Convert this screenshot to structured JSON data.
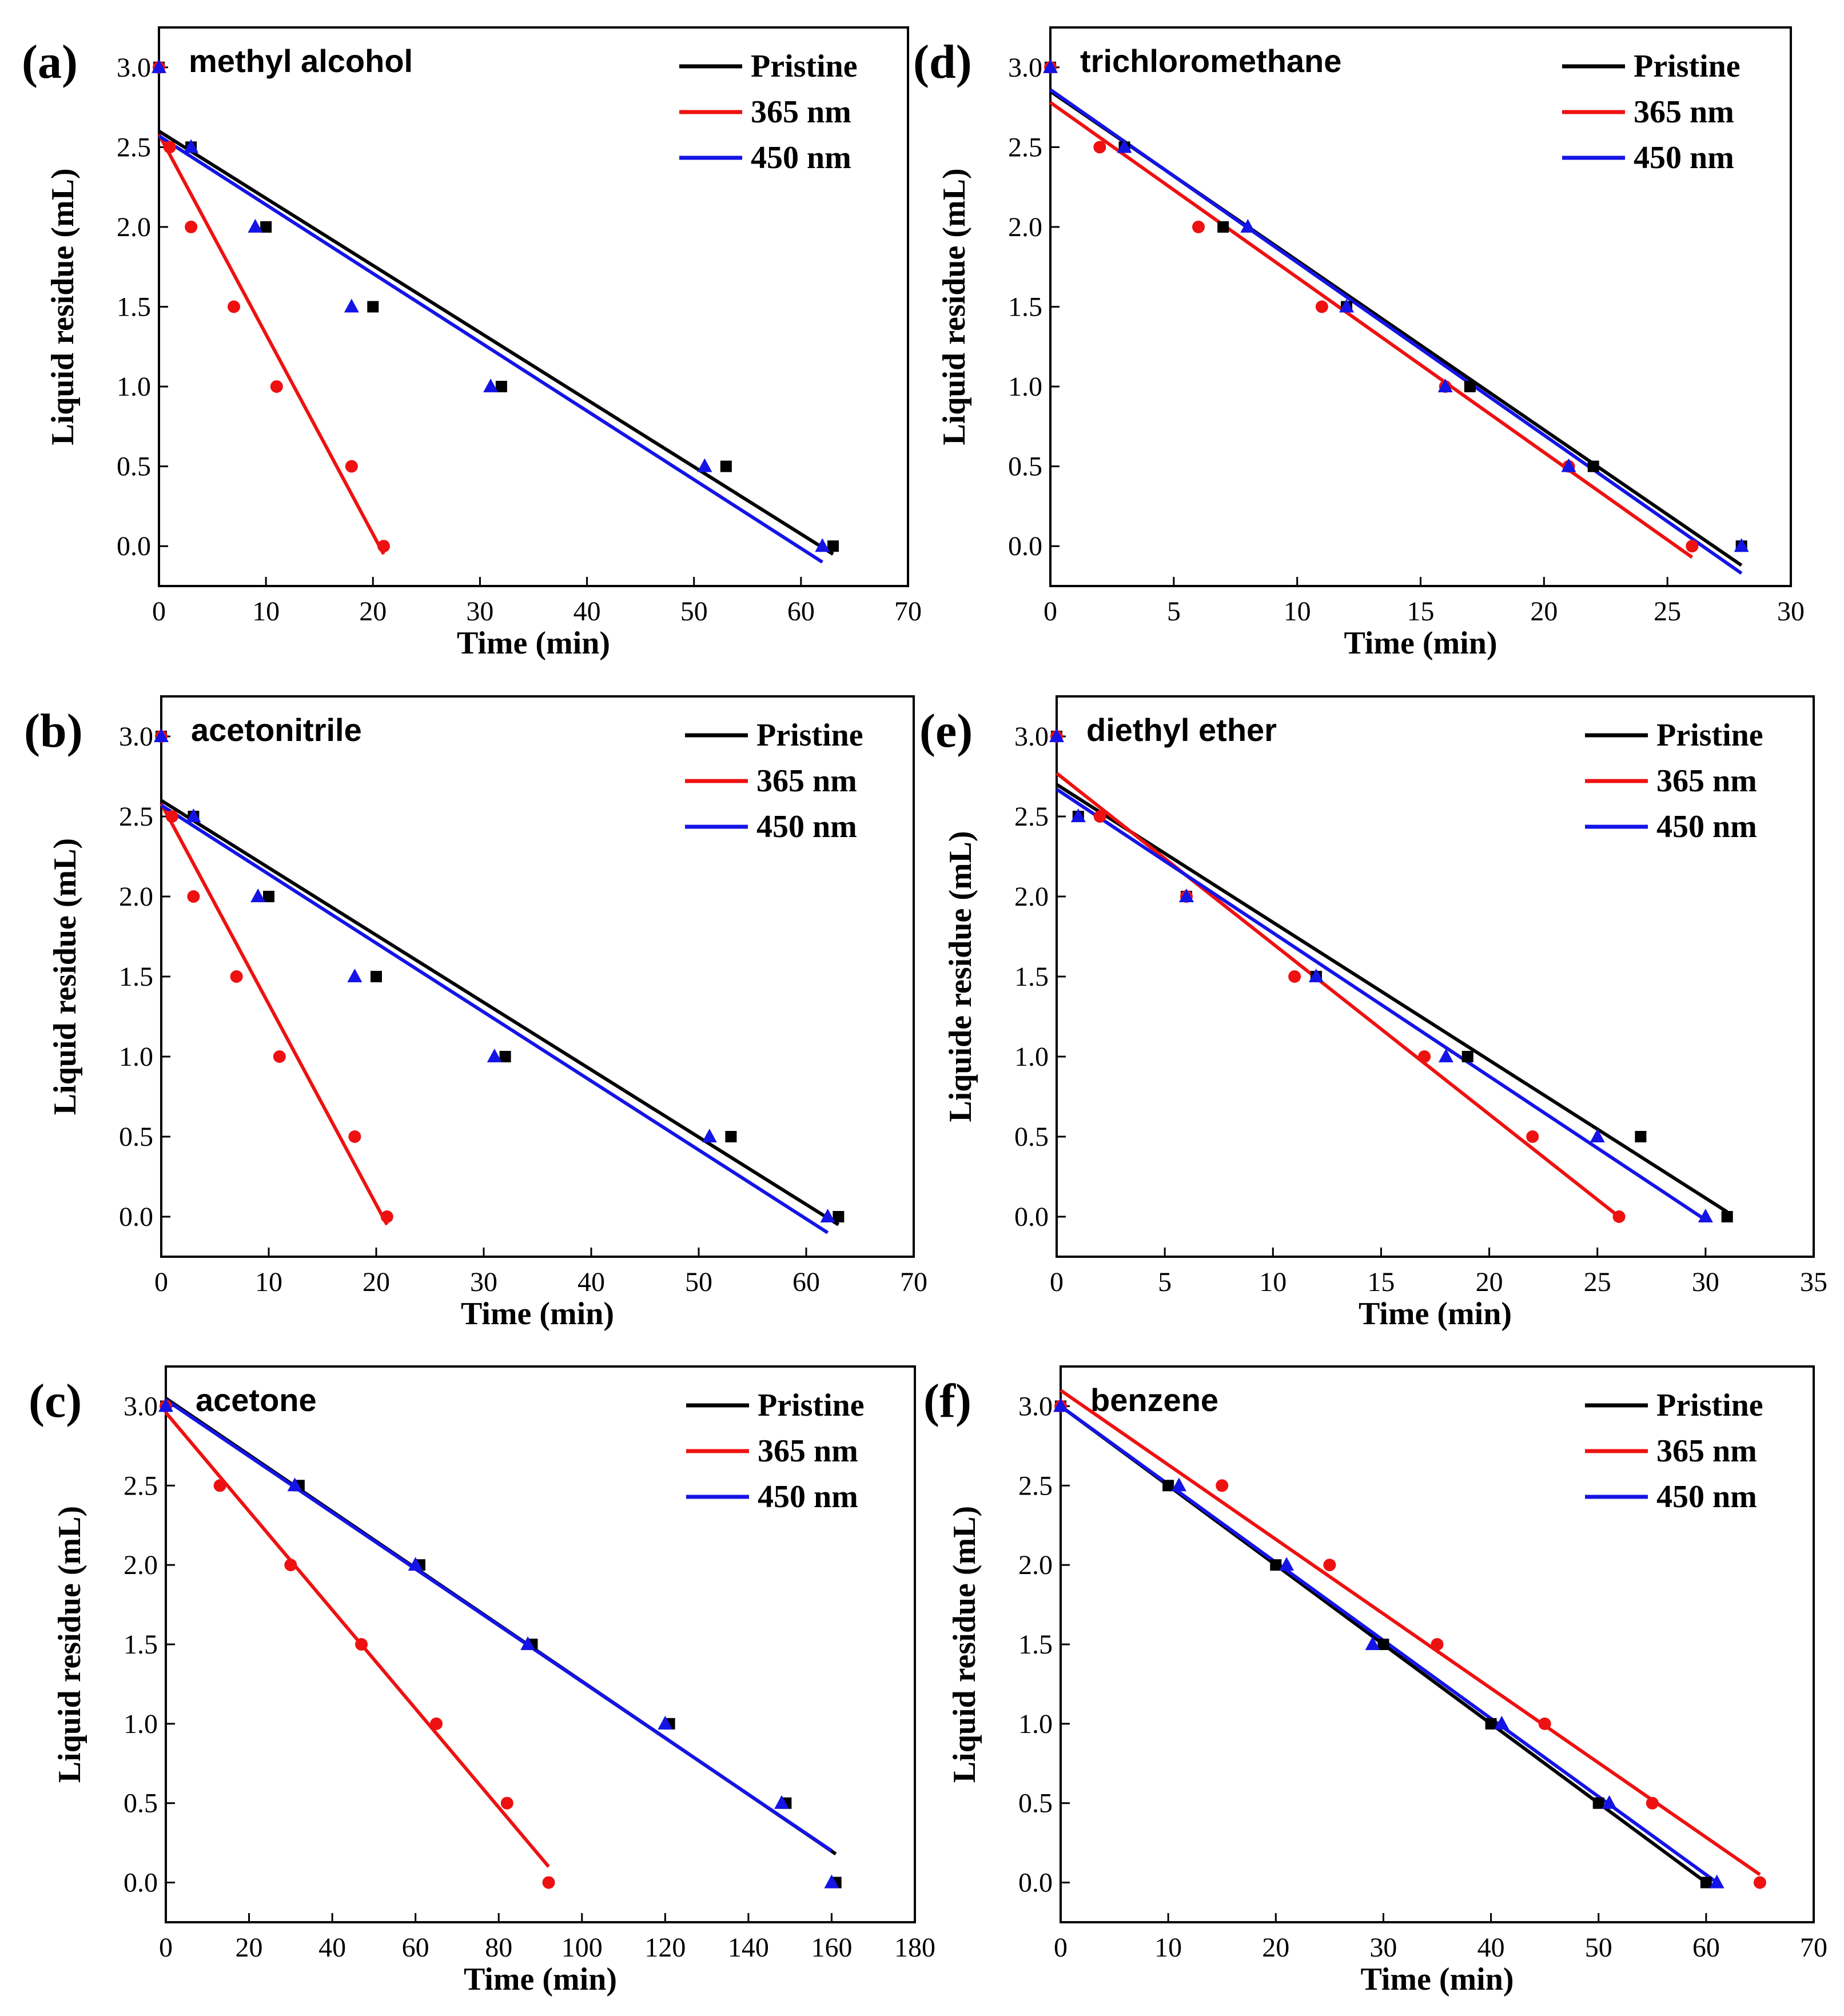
{
  "colors": {
    "Pristine": "#000000",
    "365 nm": "#ee1111",
    "450 nm": "#1414e6",
    "frame": "#000000"
  },
  "marker_shapes": {
    "Pristine": "square",
    "365 nm": "circle",
    "450 nm": "triangle"
  },
  "chart_data": [
    {
      "panel": "(a)",
      "title": "methyl alcohol",
      "type": "scatter",
      "xlabel": "Time (min)",
      "ylabel": "Liquid residue (mL)",
      "xlim": [
        0,
        70
      ],
      "xticks": [
        0,
        10,
        20,
        30,
        40,
        50,
        60,
        70
      ],
      "ylim": [
        -0.25,
        3.25
      ],
      "yticks": [
        0.0,
        0.5,
        1.0,
        1.5,
        2.0,
        2.5,
        3.0
      ],
      "legend": [
        "Pristine",
        "365 nm",
        "450 nm"
      ],
      "legend_position": "top-right",
      "series": [
        {
          "name": "Pristine",
          "x": [
            0,
            3,
            10,
            20,
            32,
            53,
            63
          ],
          "y": [
            3.0,
            2.5,
            2.0,
            1.5,
            1.0,
            0.5,
            0.0
          ],
          "fit": [
            [
              0,
              2.6
            ],
            [
              63,
              -0.05
            ]
          ]
        },
        {
          "name": "365 nm",
          "x": [
            0,
            1,
            3,
            7,
            11,
            18,
            21
          ],
          "y": [
            3.0,
            2.5,
            2.0,
            1.5,
            1.0,
            0.5,
            0.0
          ],
          "fit": [
            [
              0,
              2.58
            ],
            [
              21,
              -0.05
            ]
          ]
        },
        {
          "name": "450 nm",
          "x": [
            0,
            3,
            9,
            18,
            31,
            51,
            62
          ],
          "y": [
            3.0,
            2.5,
            2.0,
            1.5,
            1.0,
            0.5,
            0.0
          ],
          "fit": [
            [
              0,
              2.57
            ],
            [
              62,
              -0.1
            ]
          ]
        }
      ]
    },
    {
      "panel": "(b)",
      "title": "acetonitrile",
      "type": "scatter",
      "xlabel": "Time (min)",
      "ylabel": "Liquid residue (mL)",
      "xlim": [
        0,
        70
      ],
      "xticks": [
        0,
        10,
        20,
        30,
        40,
        50,
        60,
        70
      ],
      "ylim": [
        -0.25,
        3.25
      ],
      "yticks": [
        0.0,
        0.5,
        1.0,
        1.5,
        2.0,
        2.5,
        3.0
      ],
      "legend": [
        "Pristine",
        "365 nm",
        "450 nm"
      ],
      "legend_position": "top-right",
      "series": [
        {
          "name": "Pristine",
          "x": [
            0,
            3,
            10,
            20,
            32,
            53,
            63
          ],
          "y": [
            3.0,
            2.5,
            2.0,
            1.5,
            1.0,
            0.5,
            0.0
          ],
          "fit": [
            [
              0,
              2.6
            ],
            [
              63,
              -0.05
            ]
          ]
        },
        {
          "name": "365 nm",
          "x": [
            0,
            1,
            3,
            7,
            11,
            18,
            21
          ],
          "y": [
            3.0,
            2.5,
            2.0,
            1.5,
            1.0,
            0.5,
            0.0
          ],
          "fit": [
            [
              0,
              2.58
            ],
            [
              21,
              -0.05
            ]
          ]
        },
        {
          "name": "450 nm",
          "x": [
            0,
            3,
            9,
            18,
            31,
            51,
            62
          ],
          "y": [
            3.0,
            2.5,
            2.0,
            1.5,
            1.0,
            0.5,
            0.0
          ],
          "fit": [
            [
              0,
              2.57
            ],
            [
              62,
              -0.1
            ]
          ]
        }
      ]
    },
    {
      "panel": "(c)",
      "title": "acetone",
      "type": "scatter",
      "xlabel": "Time (min)",
      "ylabel": "Liquid residue (mL)",
      "xlim": [
        0,
        180
      ],
      "xticks": [
        0,
        20,
        40,
        60,
        80,
        100,
        120,
        140,
        160,
        180
      ],
      "ylim": [
        -0.25,
        3.25
      ],
      "yticks": [
        0.0,
        0.5,
        1.0,
        1.5,
        2.0,
        2.5,
        3.0
      ],
      "legend": [
        "Pristine",
        "365 nm",
        "450 nm"
      ],
      "legend_position": "top-right",
      "series": [
        {
          "name": "Pristine",
          "x": [
            0,
            32,
            61,
            88,
            121,
            149,
            161
          ],
          "y": [
            3.0,
            2.5,
            2.0,
            1.5,
            1.0,
            0.5,
            0.0
          ],
          "fit": [
            [
              0,
              3.05
            ],
            [
              161,
              0.18
            ]
          ]
        },
        {
          "name": "365 nm",
          "x": [
            0,
            13,
            30,
            47,
            65,
            82,
            92
          ],
          "y": [
            3.0,
            2.5,
            2.0,
            1.5,
            1.0,
            0.5,
            0.0
          ],
          "fit": [
            [
              0,
              2.96
            ],
            [
              92,
              0.1
            ]
          ]
        },
        {
          "name": "450 nm",
          "x": [
            0,
            31,
            60,
            87,
            120,
            148,
            160
          ],
          "y": [
            3.0,
            2.5,
            2.0,
            1.5,
            1.0,
            0.5,
            0.0
          ],
          "fit": [
            [
              0,
              3.04
            ],
            [
              160,
              0.2
            ]
          ]
        }
      ]
    },
    {
      "panel": "(d)",
      "title": "trichloromethane",
      "type": "scatter",
      "xlabel": "Time (min)",
      "ylabel": "Liquid residue (mL)",
      "xlim": [
        0,
        30
      ],
      "xticks": [
        0,
        5,
        10,
        15,
        20,
        25,
        30
      ],
      "ylim": [
        -0.25,
        3.25
      ],
      "yticks": [
        0.0,
        0.5,
        1.0,
        1.5,
        2.0,
        2.5,
        3.0
      ],
      "legend": [
        "Pristine",
        "365 nm",
        "450 nm"
      ],
      "legend_position": "top-right",
      "series": [
        {
          "name": "Pristine",
          "x": [
            0,
            3,
            7,
            12,
            17,
            22,
            28
          ],
          "y": [
            3.0,
            2.5,
            2.0,
            1.5,
            1.0,
            0.5,
            0.0
          ],
          "fit": [
            [
              0,
              2.85
            ],
            [
              28,
              -0.12
            ]
          ]
        },
        {
          "name": "365 nm",
          "x": [
            0,
            2,
            6,
            11,
            16,
            21,
            26
          ],
          "y": [
            3.0,
            2.5,
            2.0,
            1.5,
            1.0,
            0.5,
            0.0
          ],
          "fit": [
            [
              0,
              2.78
            ],
            [
              26,
              -0.07
            ]
          ]
        },
        {
          "name": "450 nm",
          "x": [
            0,
            3,
            8,
            12,
            16,
            21,
            28
          ],
          "y": [
            3.0,
            2.5,
            2.0,
            1.5,
            1.0,
            0.5,
            0.0
          ],
          "fit": [
            [
              0,
              2.86
            ],
            [
              28,
              -0.17
            ]
          ]
        }
      ]
    },
    {
      "panel": "(e)",
      "title": "diethyl ether",
      "type": "scatter",
      "xlabel": "Time (min)",
      "ylabel": "Liquide residue (mL)",
      "xlim": [
        0,
        35
      ],
      "xticks": [
        0,
        5,
        10,
        15,
        20,
        25,
        30,
        35
      ],
      "ylim": [
        -0.25,
        3.25
      ],
      "yticks": [
        0.0,
        0.5,
        1.0,
        1.5,
        2.0,
        2.5,
        3.0
      ],
      "legend": [
        "Pristine",
        "365 nm",
        "450 nm"
      ],
      "legend_position": "top-right",
      "series": [
        {
          "name": "Pristine",
          "x": [
            0,
            1,
            6,
            12,
            19,
            27,
            31
          ],
          "y": [
            3.0,
            2.5,
            2.0,
            1.5,
            1.0,
            0.5,
            0.0
          ],
          "fit": [
            [
              0,
              2.7
            ],
            [
              31,
              0.03
            ]
          ]
        },
        {
          "name": "365 nm",
          "x": [
            0,
            2,
            6,
            11,
            17,
            22,
            26
          ],
          "y": [
            3.0,
            2.5,
            2.0,
            1.5,
            1.0,
            0.5,
            0.0
          ],
          "fit": [
            [
              0,
              2.77
            ],
            [
              26,
              0.0
            ]
          ]
        },
        {
          "name": "450 nm",
          "x": [
            0,
            1,
            6,
            12,
            18,
            25,
            30
          ],
          "y": [
            3.0,
            2.5,
            2.0,
            1.5,
            1.0,
            0.5,
            0.0
          ],
          "fit": [
            [
              0,
              2.67
            ],
            [
              30,
              -0.02
            ]
          ]
        }
      ]
    },
    {
      "panel": "(f)",
      "title": "benzene",
      "type": "scatter",
      "xlabel": "Time (min)",
      "ylabel": "Liquid residue (mL)",
      "xlim": [
        0,
        70
      ],
      "xticks": [
        0,
        10,
        20,
        30,
        40,
        50,
        60,
        70
      ],
      "ylim": [
        -0.25,
        3.25
      ],
      "yticks": [
        0.0,
        0.5,
        1.0,
        1.5,
        2.0,
        2.5,
        3.0
      ],
      "legend": [
        "Pristine",
        "365 nm",
        "450 nm"
      ],
      "legend_position": "top-right",
      "series": [
        {
          "name": "Pristine",
          "x": [
            0,
            10,
            20,
            30,
            40,
            50,
            60
          ],
          "y": [
            3.0,
            2.5,
            2.0,
            1.5,
            1.0,
            0.5,
            0.0
          ],
          "fit": [
            [
              0,
              3.0
            ],
            [
              60,
              0.0
            ]
          ]
        },
        {
          "name": "365 nm",
          "x": [
            0,
            15,
            25,
            35,
            45,
            55,
            65
          ],
          "y": [
            3.0,
            2.5,
            2.0,
            1.5,
            1.0,
            0.5,
            0.0
          ],
          "fit": [
            [
              0,
              3.1
            ],
            [
              65,
              0.05
            ]
          ]
        },
        {
          "name": "450 nm",
          "x": [
            0,
            11,
            21,
            29,
            41,
            51,
            61
          ],
          "y": [
            3.0,
            2.5,
            2.0,
            1.5,
            1.0,
            0.5,
            0.0
          ],
          "fit": [
            [
              0,
              3.0
            ],
            [
              61,
              0.0
            ]
          ]
        }
      ]
    }
  ]
}
